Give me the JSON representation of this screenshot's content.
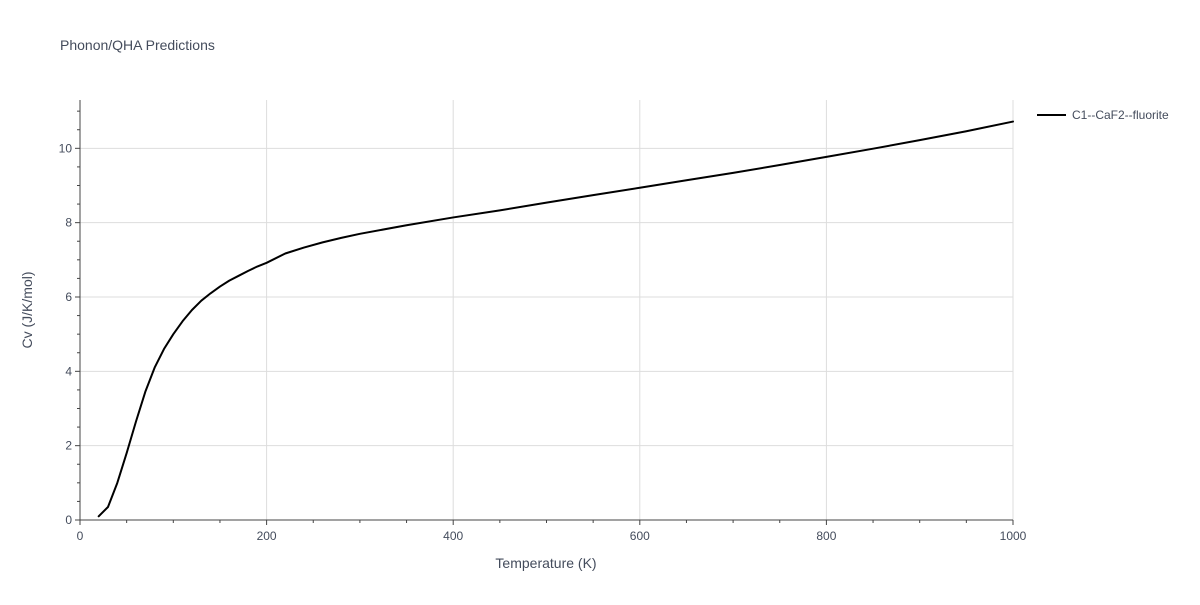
{
  "chart_data": {
    "type": "line",
    "title": "Phonon/QHA Predictions",
    "xlabel": "Temperature (K)",
    "ylabel": "Cv (J/K/mol)",
    "xlim": [
      0,
      1000
    ],
    "ylim": [
      0,
      11.3
    ],
    "x_ticks": [
      0,
      200,
      400,
      600,
      800,
      1000
    ],
    "y_ticks": [
      0,
      2,
      4,
      6,
      8,
      10
    ],
    "grid": true,
    "legend_position": "top-right",
    "series": [
      {
        "name": "C1--CaF2--fluorite",
        "color": "#000000",
        "x": [
          20,
          30,
          40,
          50,
          60,
          70,
          80,
          90,
          100,
          110,
          120,
          130,
          140,
          150,
          160,
          170,
          180,
          190,
          200,
          220,
          240,
          260,
          280,
          300,
          350,
          400,
          450,
          500,
          550,
          600,
          650,
          700,
          750,
          800,
          850,
          900,
          950,
          1000
        ],
        "y": [
          0.1,
          0.35,
          1.0,
          1.8,
          2.65,
          3.45,
          4.1,
          4.6,
          5.0,
          5.35,
          5.65,
          5.9,
          6.1,
          6.28,
          6.44,
          6.57,
          6.7,
          6.82,
          6.92,
          7.17,
          7.33,
          7.47,
          7.59,
          7.7,
          7.93,
          8.14,
          8.33,
          8.54,
          8.74,
          8.94,
          9.14,
          9.34,
          9.55,
          9.77,
          9.99,
          10.22,
          10.46,
          10.72
        ]
      }
    ]
  }
}
